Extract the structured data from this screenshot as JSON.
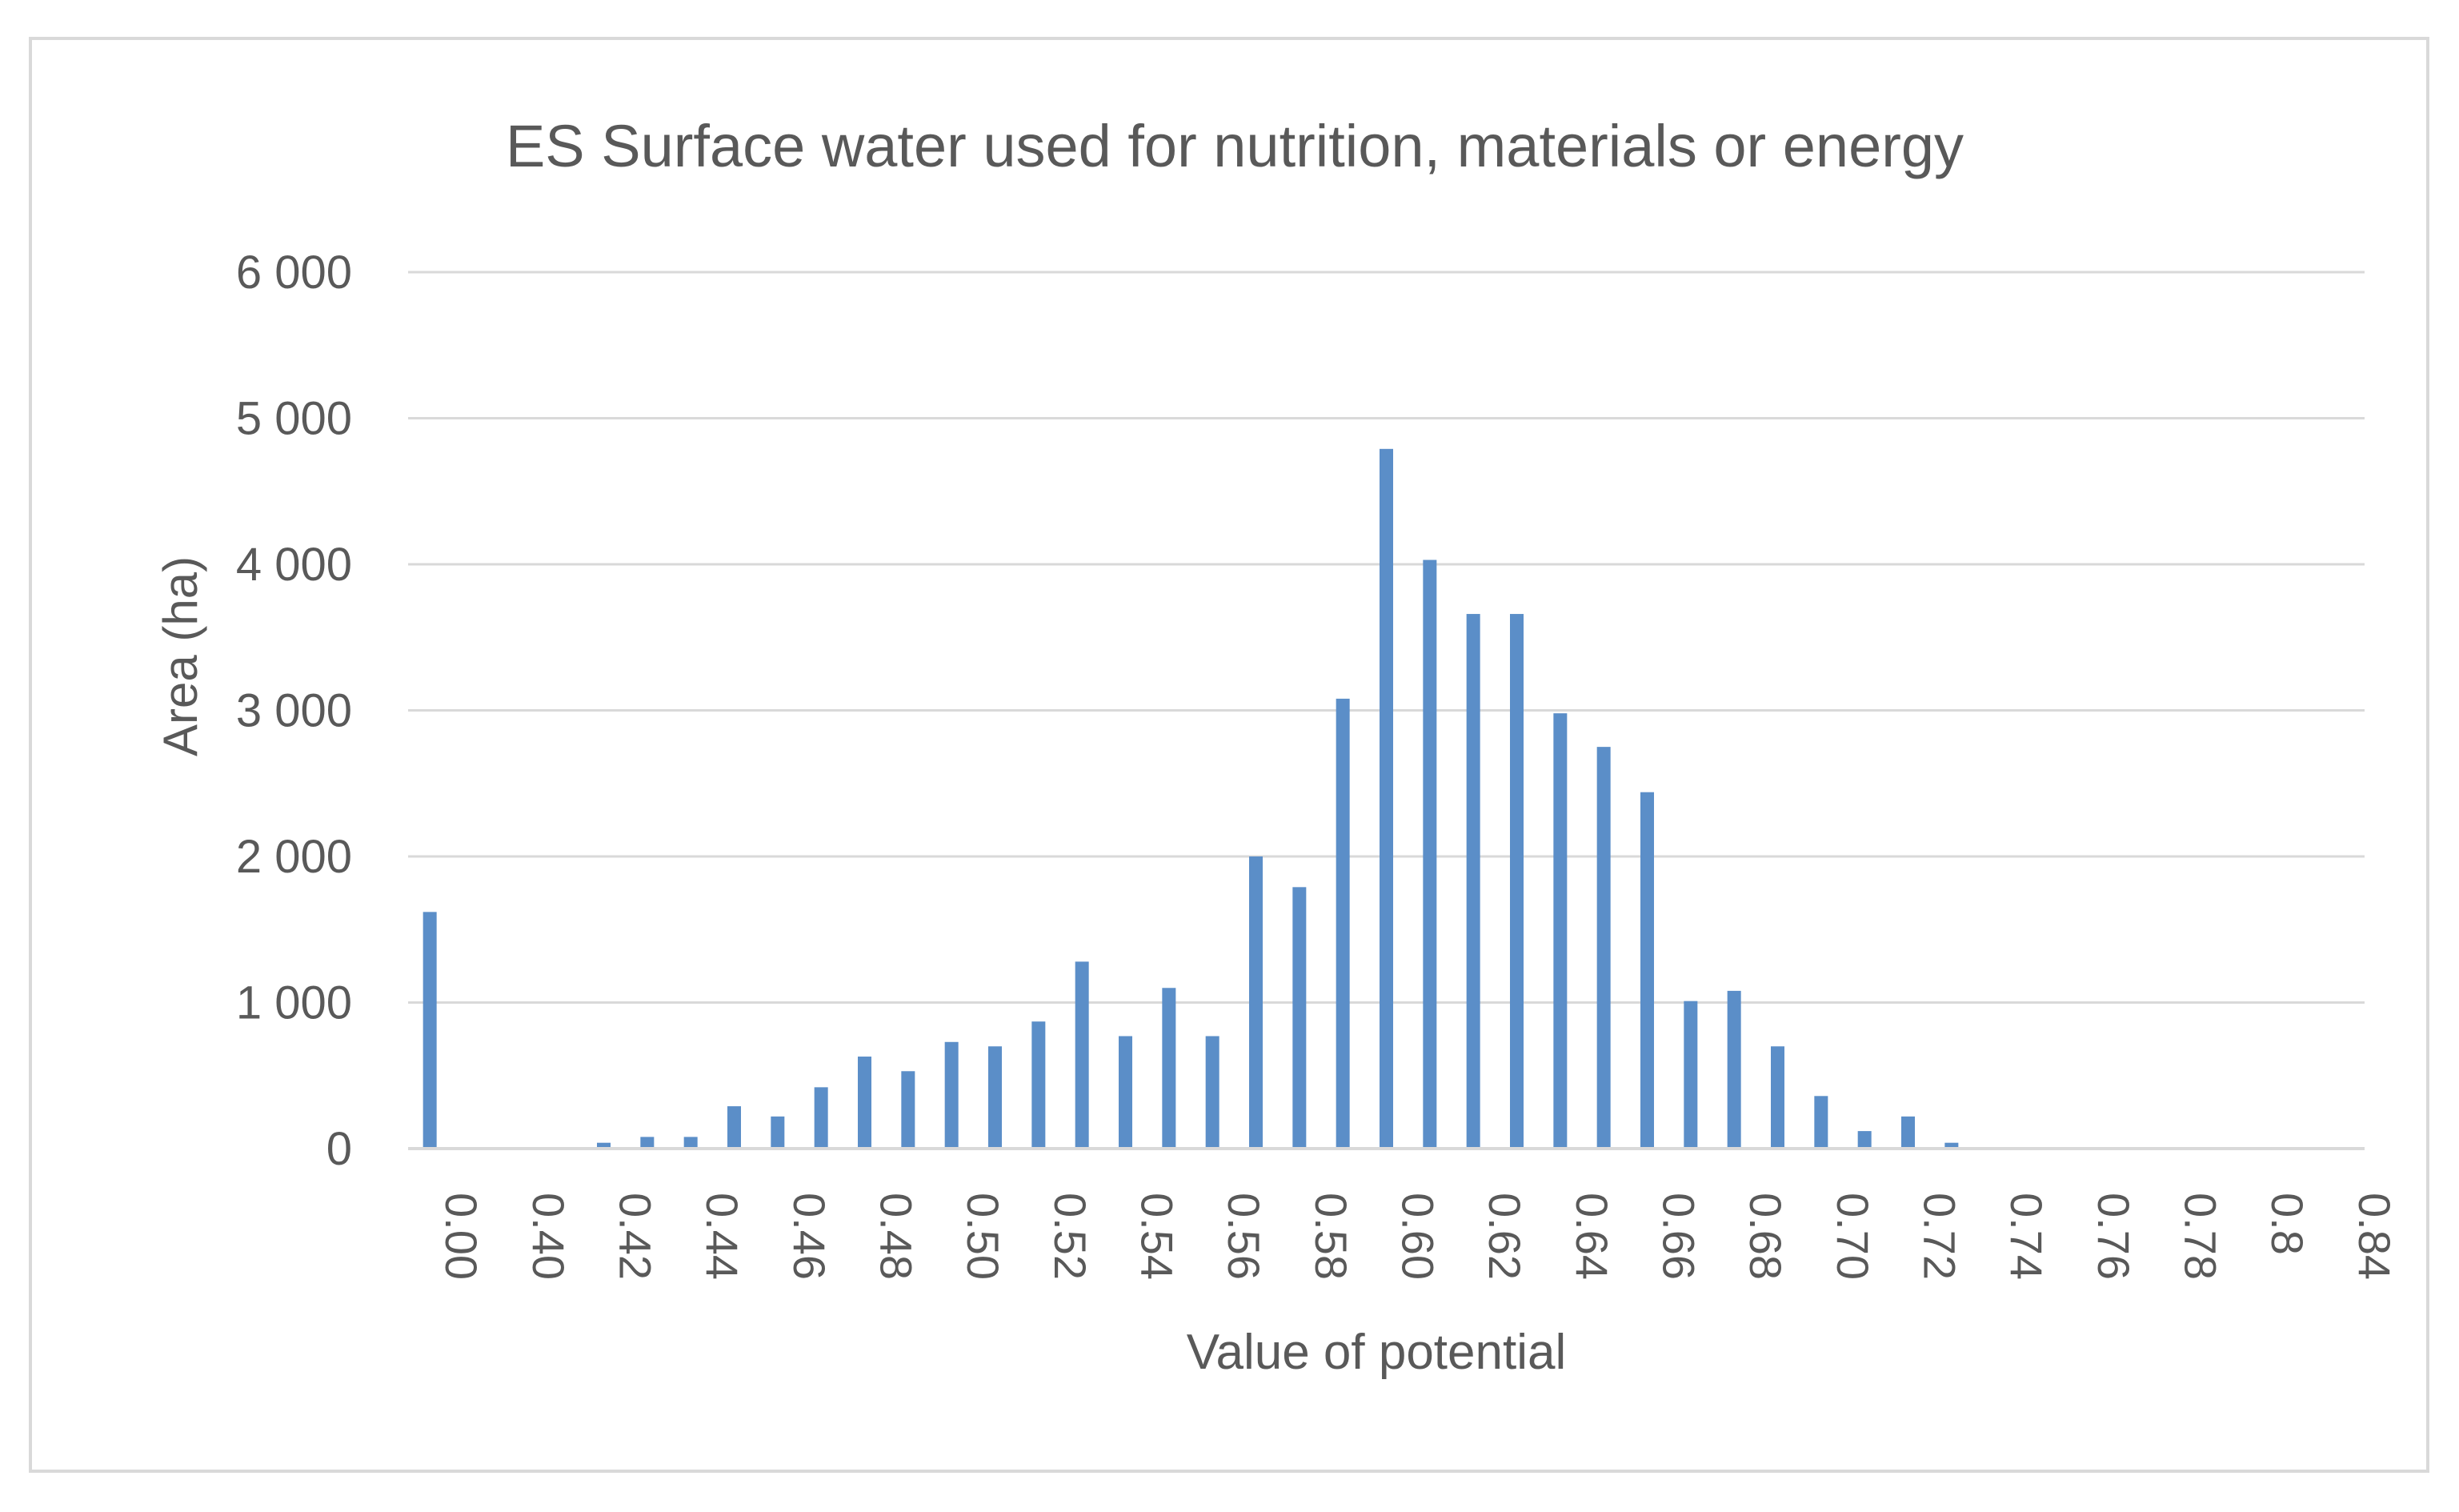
{
  "chart_data": {
    "type": "bar",
    "title": "ES Surface water used for nutrition, materials or energy",
    "xlabel": "Value of potential",
    "ylabel": "Area (ha)",
    "ylim": [
      0,
      6000
    ],
    "yticks": [
      0,
      1000,
      2000,
      3000,
      4000,
      5000,
      6000
    ],
    "ytick_labels": [
      "0",
      "1 000",
      "2 000",
      "3 000",
      "4 000",
      "5 000",
      "6 000"
    ],
    "grid": true,
    "legend": "none",
    "bar_color": "#5b8ec8",
    "categories": [
      "0.00",
      "",
      "0.40",
      "",
      "0.42",
      "",
      "0.44",
      "",
      "0.46",
      "",
      "0.48",
      "",
      "0.50",
      "",
      "0.52",
      "",
      "0.54",
      "",
      "0.56",
      "",
      "0.58",
      "",
      "0.60",
      "",
      "0.62",
      "",
      "0.64",
      "",
      "0.66",
      "",
      "0.68",
      "",
      "0.70",
      "",
      "0.72",
      "",
      "0.74",
      "",
      "0.76",
      "",
      "0.78",
      "",
      "0.8",
      "",
      "0.84"
    ],
    "values": [
      1620,
      0,
      0,
      0,
      40,
      80,
      80,
      290,
      220,
      420,
      630,
      530,
      730,
      700,
      870,
      1280,
      770,
      1100,
      770,
      2000,
      1790,
      3080,
      4790,
      4030,
      3660,
      3660,
      2980,
      2750,
      2440,
      1010,
      1080,
      700,
      360,
      120,
      220,
      40,
      0,
      0,
      0,
      0,
      0,
      0,
      0,
      0,
      0
    ]
  }
}
